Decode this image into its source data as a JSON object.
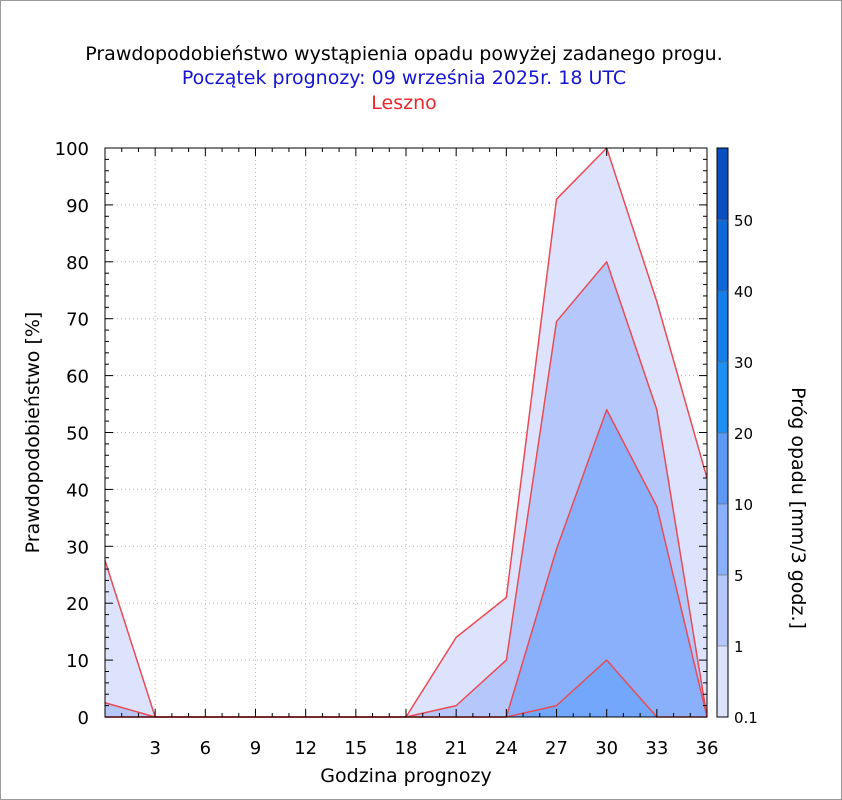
{
  "chart_data": {
    "type": "area",
    "title": "Prawdopodobieństwo wystąpienia opadu powyżej zadanego progu.",
    "subtitle": "Początek prognozy: 09 września 2025r. 18 UTC",
    "location": "Leszno",
    "xlabel": "Godzina prognozy",
    "ylabel": "Prawdopodobieństwo [%]",
    "xlim": [
      0,
      36
    ],
    "ylim": [
      0,
      100
    ],
    "x_ticks": [
      3,
      6,
      9,
      12,
      15,
      18,
      21,
      24,
      27,
      30,
      33,
      36
    ],
    "y_ticks": [
      0,
      10,
      20,
      30,
      40,
      50,
      60,
      70,
      80,
      90,
      100
    ],
    "grid": true,
    "x": [
      0,
      3,
      6,
      9,
      12,
      15,
      18,
      21,
      24,
      27,
      30,
      33,
      36
    ],
    "series": [
      {
        "threshold": "0.1",
        "color": "#dee3fd",
        "values": [
          27.5,
          0,
          0,
          0,
          0,
          0,
          0,
          14,
          21,
          91,
          100,
          73,
          42
        ]
      },
      {
        "threshold": "1",
        "color": "#b6c8fb",
        "values": [
          2.5,
          0,
          0,
          0,
          0,
          0,
          0,
          2,
          10,
          69.5,
          80,
          54,
          0
        ]
      },
      {
        "threshold": "5",
        "color": "#8bb0fb",
        "values": [
          0,
          0,
          0,
          0,
          0,
          0,
          0,
          0,
          0,
          29.5,
          54,
          37,
          0
        ]
      },
      {
        "threshold": "10",
        "color": "#73a7fb",
        "values": [
          0,
          0,
          0,
          0,
          0,
          0,
          0,
          0,
          0,
          2,
          10,
          0,
          0
        ]
      }
    ],
    "line_color": "#e84b55",
    "colorbar": {
      "label": "Próg opadu [mm/3 godz.]",
      "levels": [
        "0.1",
        "1",
        "5",
        "10",
        "20",
        "30",
        "40",
        "50"
      ],
      "colors": [
        "#eef1fe",
        "#dee3fd",
        "#b6c8fb",
        "#8bb0fb",
        "#5d98f5",
        "#1f8ff2",
        "#157ee9",
        "#0f68d8",
        "#0a4fc1"
      ]
    }
  }
}
